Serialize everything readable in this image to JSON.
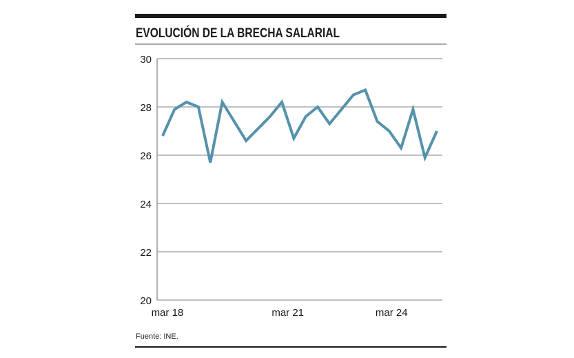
{
  "chart_data": {
    "type": "line",
    "title": "EVOLUCIÓN DE LA BRECHA SALARIAL",
    "source": "Fuente: INE.",
    "xlabel": "",
    "ylabel": "",
    "ylim": [
      20,
      30
    ],
    "yticks": [
      "20",
      "22",
      "24",
      "26",
      "28",
      "30"
    ],
    "xtick_labels": [
      {
        "label": "mar 18",
        "index": 0.4
      },
      {
        "label": "mar 21",
        "index": 10.5
      },
      {
        "label": "mar 24",
        "index": 19.2
      }
    ],
    "grid": true,
    "line_color": "#5592ab",
    "values": [
      26.8,
      27.9,
      28.2,
      28.0,
      25.7,
      28.2,
      27.4,
      26.6,
      27.1,
      27.6,
      28.2,
      26.7,
      27.6,
      28.0,
      27.3,
      27.9,
      28.5,
      28.7,
      27.4,
      27.0,
      26.3,
      27.9,
      25.9,
      27.0
    ]
  }
}
